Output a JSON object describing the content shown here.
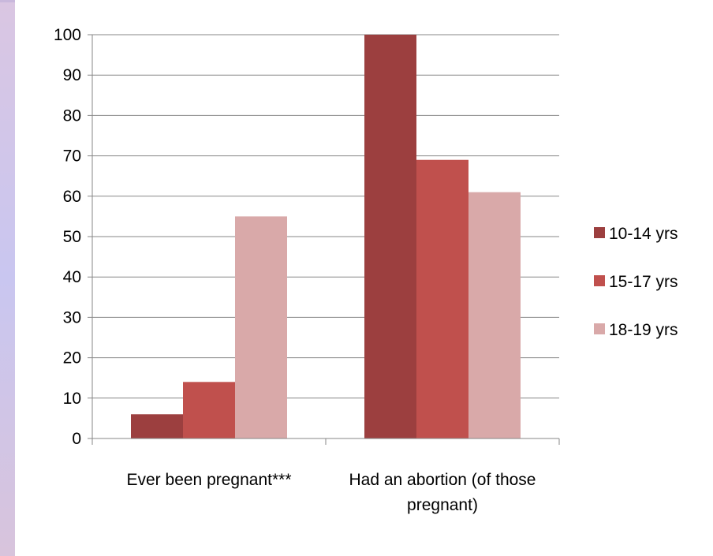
{
  "chart_data": {
    "type": "bar",
    "title": "",
    "xlabel": "",
    "ylabel": "",
    "ylim": [
      0,
      100
    ],
    "yticks": [
      "0",
      "10",
      "20",
      "30",
      "40",
      "50",
      "60",
      "70",
      "80",
      "90",
      "100"
    ],
    "categories": [
      "Ever been pregnant***",
      "Had an abortion (of those pregnant)"
    ],
    "category_lines": [
      [
        "Ever been pregnant***"
      ],
      [
        "Had an abortion (of those",
        "pregnant)"
      ]
    ],
    "series": [
      {
        "name": "10-14 yrs",
        "values": [
          6,
          100
        ],
        "color": "#9c3f3f"
      },
      {
        "name": "15-17 yrs",
        "values": [
          14,
          69
        ],
        "color": "#c0504d"
      },
      {
        "name": "18-19 yrs",
        "values": [
          55,
          61
        ],
        "color": "#d9a9a9"
      }
    ],
    "grid": true,
    "legend_position": "right"
  }
}
